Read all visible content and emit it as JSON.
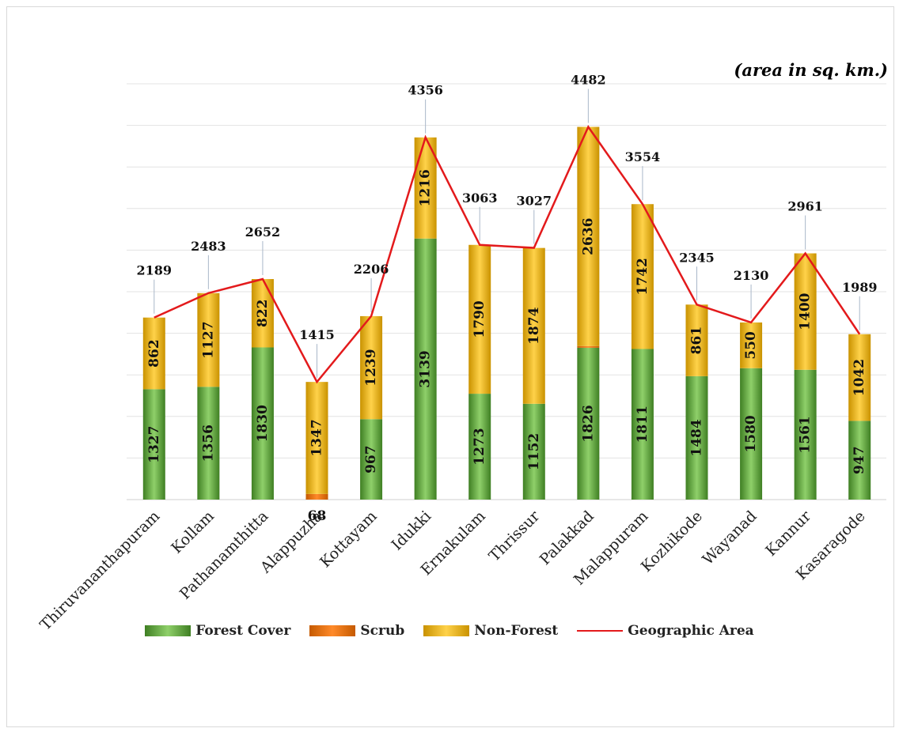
{
  "chart_data": {
    "type": "bar",
    "stacked": true,
    "unit_note": "(area in sq. km.)",
    "categories": [
      "Thiruvananthapuram",
      "Kollam",
      "Pathanamthitta",
      "Alappuzha",
      "Kottayam",
      "Idukki",
      "Ernakulam",
      "Thrissur",
      "Palakkad",
      "Malappuram",
      "Kozhikode",
      "Wayanad",
      "Kannur",
      "Kasaragode"
    ],
    "series": [
      {
        "name": "Forest Cover",
        "values": [
          1327,
          1356,
          1830,
          0,
          967,
          3139,
          1273,
          1152,
          1826,
          1811,
          1484,
          1580,
          1561,
          947
        ],
        "labels": [
          "1327",
          "1356",
          "1830",
          "",
          "967",
          "3139",
          "1273",
          "1152",
          "1826",
          "1811",
          "1484",
          "1580",
          "1561",
          "947"
        ],
        "color": "#5a9e3a"
      },
      {
        "name": "Scrub",
        "values": [
          0,
          0,
          0,
          68,
          0,
          0,
          0,
          0,
          20,
          0,
          0,
          0,
          0,
          0
        ],
        "labels": [
          "",
          "",
          "",
          "68",
          "",
          "",
          "",
          "",
          "",
          "",
          "",
          "",
          "",
          ""
        ],
        "color": "#e36c09"
      },
      {
        "name": "Non-Forest",
        "values": [
          862,
          1127,
          822,
          1347,
          1239,
          1216,
          1790,
          1874,
          2636,
          1742,
          861,
          550,
          1400,
          1042
        ],
        "labels": [
          "862",
          "1127",
          "822",
          "1347",
          "1239",
          "1216",
          "1790",
          "1874",
          "2636",
          "1742",
          "861",
          "550",
          "1400",
          "1042"
        ],
        "color": "#e6a800"
      }
    ],
    "line_series": {
      "name": "Geographic  Area",
      "values": [
        2189,
        2483,
        2652,
        1415,
        2206,
        4356,
        3063,
        3027,
        4482,
        3554,
        2345,
        2130,
        2961,
        1989
      ],
      "labels": [
        "2189",
        "2483",
        "2652",
        "1415",
        "2206",
        "4356",
        "3063",
        "3027",
        "4482",
        "3554",
        "2345",
        "2130",
        "2961",
        "1989"
      ],
      "color": "#e31a1c"
    },
    "ylim": [
      0,
      5000
    ],
    "grid": true,
    "legend_position": "bottom"
  }
}
